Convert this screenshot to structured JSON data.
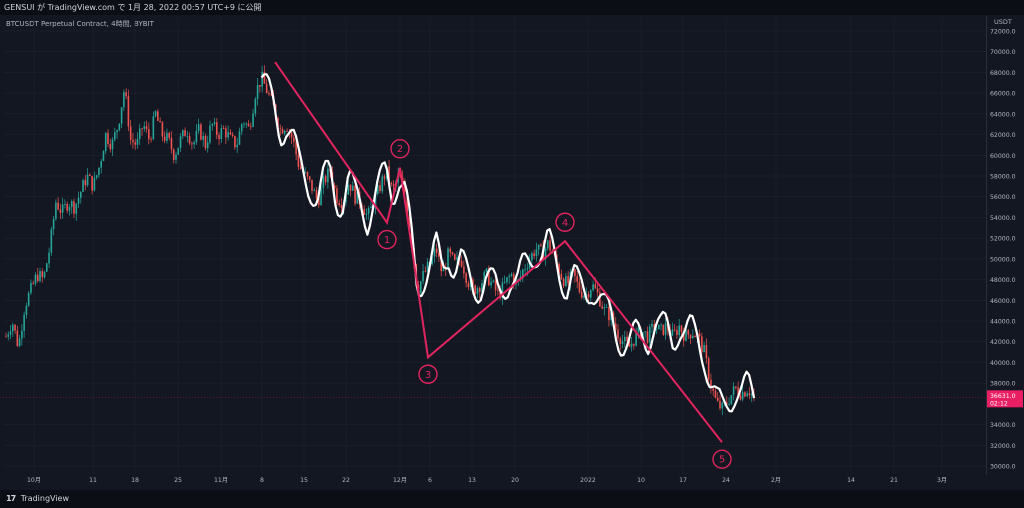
{
  "header": {
    "publisher_line": "GENSUI が TradingView.com で 1月 28, 2022 00:57 UTC+9 に公開"
  },
  "footer": {
    "logo_text": "17",
    "brand": "TradingView"
  },
  "chart_data": {
    "type": "candlestick",
    "title": "BTCUSDT Perpetual Contract, 4時間, BYBIT",
    "currency": "USDT",
    "ylim": [
      29000,
      73500
    ],
    "y_ticks": [
      "72000.0",
      "70000.0",
      "68000.0",
      "66000.0",
      "64000.0",
      "62000.0",
      "60000.0",
      "58000.0",
      "56000.0",
      "54000.0",
      "52000.0",
      "50000.0",
      "48000.0",
      "46000.0",
      "44000.0",
      "42000.0",
      "40000.0",
      "38000.0",
      "34000.0",
      "32000.0",
      "30000.0"
    ],
    "x_ticks": [
      "10月",
      "11",
      "18",
      "25",
      "11月",
      "8",
      "15",
      "22",
      "12月",
      "6",
      "13",
      "20",
      "2022",
      "10",
      "17",
      "24",
      "2月",
      "14",
      "21",
      "3月"
    ],
    "last_price": {
      "value": 36631.0,
      "label": "36631.0",
      "countdown": "02:12",
      "color": "#e91e63"
    },
    "price_path": [
      [
        0,
        42500
      ],
      [
        0.5,
        44000
      ],
      [
        1,
        41500
      ],
      [
        1.5,
        45500
      ],
      [
        2,
        47000
      ],
      [
        2.5,
        48500
      ],
      [
        3,
        48000
      ],
      [
        3.5,
        51000
      ],
      [
        4,
        55500
      ],
      [
        4.5,
        54500
      ],
      [
        5,
        55500
      ],
      [
        5.5,
        55000
      ],
      [
        6,
        56500
      ],
      [
        6.5,
        58000
      ],
      [
        7,
        57000
      ],
      [
        7.5,
        59000
      ],
      [
        8,
        62000
      ],
      [
        8.5,
        61000
      ],
      [
        9,
        63000
      ],
      [
        9.5,
        66500
      ],
      [
        10,
        61500
      ],
      [
        10.5,
        61000
      ],
      [
        11,
        63000
      ],
      [
        11.5,
        61500
      ],
      [
        12,
        64000
      ],
      [
        12.5,
        62000
      ],
      [
        13,
        61500
      ],
      [
        13.5,
        60000
      ],
      [
        14,
        61500
      ],
      [
        14.5,
        62500
      ],
      [
        15,
        61000
      ],
      [
        15.5,
        62500
      ],
      [
        16,
        61000
      ],
      [
        16.5,
        63000
      ],
      [
        17,
        62000
      ],
      [
        17.5,
        62500
      ],
      [
        18,
        61500
      ],
      [
        18.5,
        61000
      ],
      [
        19,
        63500
      ],
      [
        19.5,
        62500
      ],
      [
        20,
        66000
      ],
      [
        20.5,
        67500
      ],
      [
        21,
        66000
      ],
      [
        21.5,
        64500
      ],
      [
        22,
        62500
      ],
      [
        22.5,
        63000
      ],
      [
        23,
        61500
      ],
      [
        23.5,
        59000
      ],
      [
        24,
        58000
      ],
      [
        24.5,
        57000
      ],
      [
        25,
        55500
      ],
      [
        25.5,
        57500
      ],
      [
        26,
        58500
      ],
      [
        26.5,
        56000
      ],
      [
        27,
        55500
      ],
      [
        27.5,
        57500
      ],
      [
        28,
        56000
      ],
      [
        28.5,
        55500
      ],
      [
        29,
        54000
      ],
      [
        29.5,
        55500
      ],
      [
        30,
        57000
      ],
      [
        30.5,
        58500
      ],
      [
        31,
        56500
      ],
      [
        31.5,
        58000
      ],
      [
        32,
        56500
      ],
      [
        32.5,
        52000
      ],
      [
        33,
        47000
      ],
      [
        33.5,
        48500
      ],
      [
        34,
        49500
      ],
      [
        34.5,
        51000
      ],
      [
        35,
        48500
      ],
      [
        35.5,
        50500
      ],
      [
        36,
        49500
      ],
      [
        36.5,
        50000
      ],
      [
        37,
        48000
      ],
      [
        37.5,
        47000
      ],
      [
        38,
        47500
      ],
      [
        38.5,
        48500
      ],
      [
        39,
        47500
      ],
      [
        39.5,
        46500
      ],
      [
        40,
        47500
      ],
      [
        40.5,
        48500
      ],
      [
        41,
        47500
      ],
      [
        41.5,
        49000
      ],
      [
        42,
        50000
      ],
      [
        42.5,
        51000
      ],
      [
        43,
        50500
      ],
      [
        43.5,
        51500
      ],
      [
        44,
        50000
      ],
      [
        44.5,
        48500
      ],
      [
        45,
        47500
      ],
      [
        45.5,
        48500
      ],
      [
        46,
        47000
      ],
      [
        46.5,
        46500
      ],
      [
        47,
        47500
      ],
      [
        47.5,
        46500
      ],
      [
        48,
        45000
      ],
      [
        48.5,
        44500
      ],
      [
        49,
        43000
      ],
      [
        49.5,
        42000
      ],
      [
        50,
        41500
      ],
      [
        50.5,
        42500
      ],
      [
        51,
        43000
      ],
      [
        51.5,
        42500
      ],
      [
        52,
        43500
      ],
      [
        52.5,
        43000
      ],
      [
        53,
        43500
      ],
      [
        53.5,
        42500
      ],
      [
        54,
        43500
      ],
      [
        54.5,
        42500
      ],
      [
        55,
        43000
      ],
      [
        55.5,
        42500
      ],
      [
        56,
        41000
      ],
      [
        56.5,
        38000
      ],
      [
        57,
        36000
      ],
      [
        57.5,
        35500
      ],
      [
        58,
        36500
      ],
      [
        58.5,
        37500
      ],
      [
        59,
        37000
      ],
      [
        59.5,
        37500
      ],
      [
        60,
        36631
      ]
    ],
    "wave_points": [
      {
        "label": "1",
        "value": 53500
      },
      {
        "label": "2",
        "value": 58800
      },
      {
        "label": "3",
        "value": 40500
      },
      {
        "label": "4",
        "value": 51700
      },
      {
        "label": "5",
        "value": 32300
      }
    ],
    "wave_start_value": 69000,
    "colors": {
      "background": "#131722",
      "up": "#26a69a",
      "down": "#ef5350",
      "wave_line": "#e0245e",
      "white_curve": "#ffffff",
      "grid": "#1e222d",
      "axis_text": "#b2b5be"
    }
  }
}
